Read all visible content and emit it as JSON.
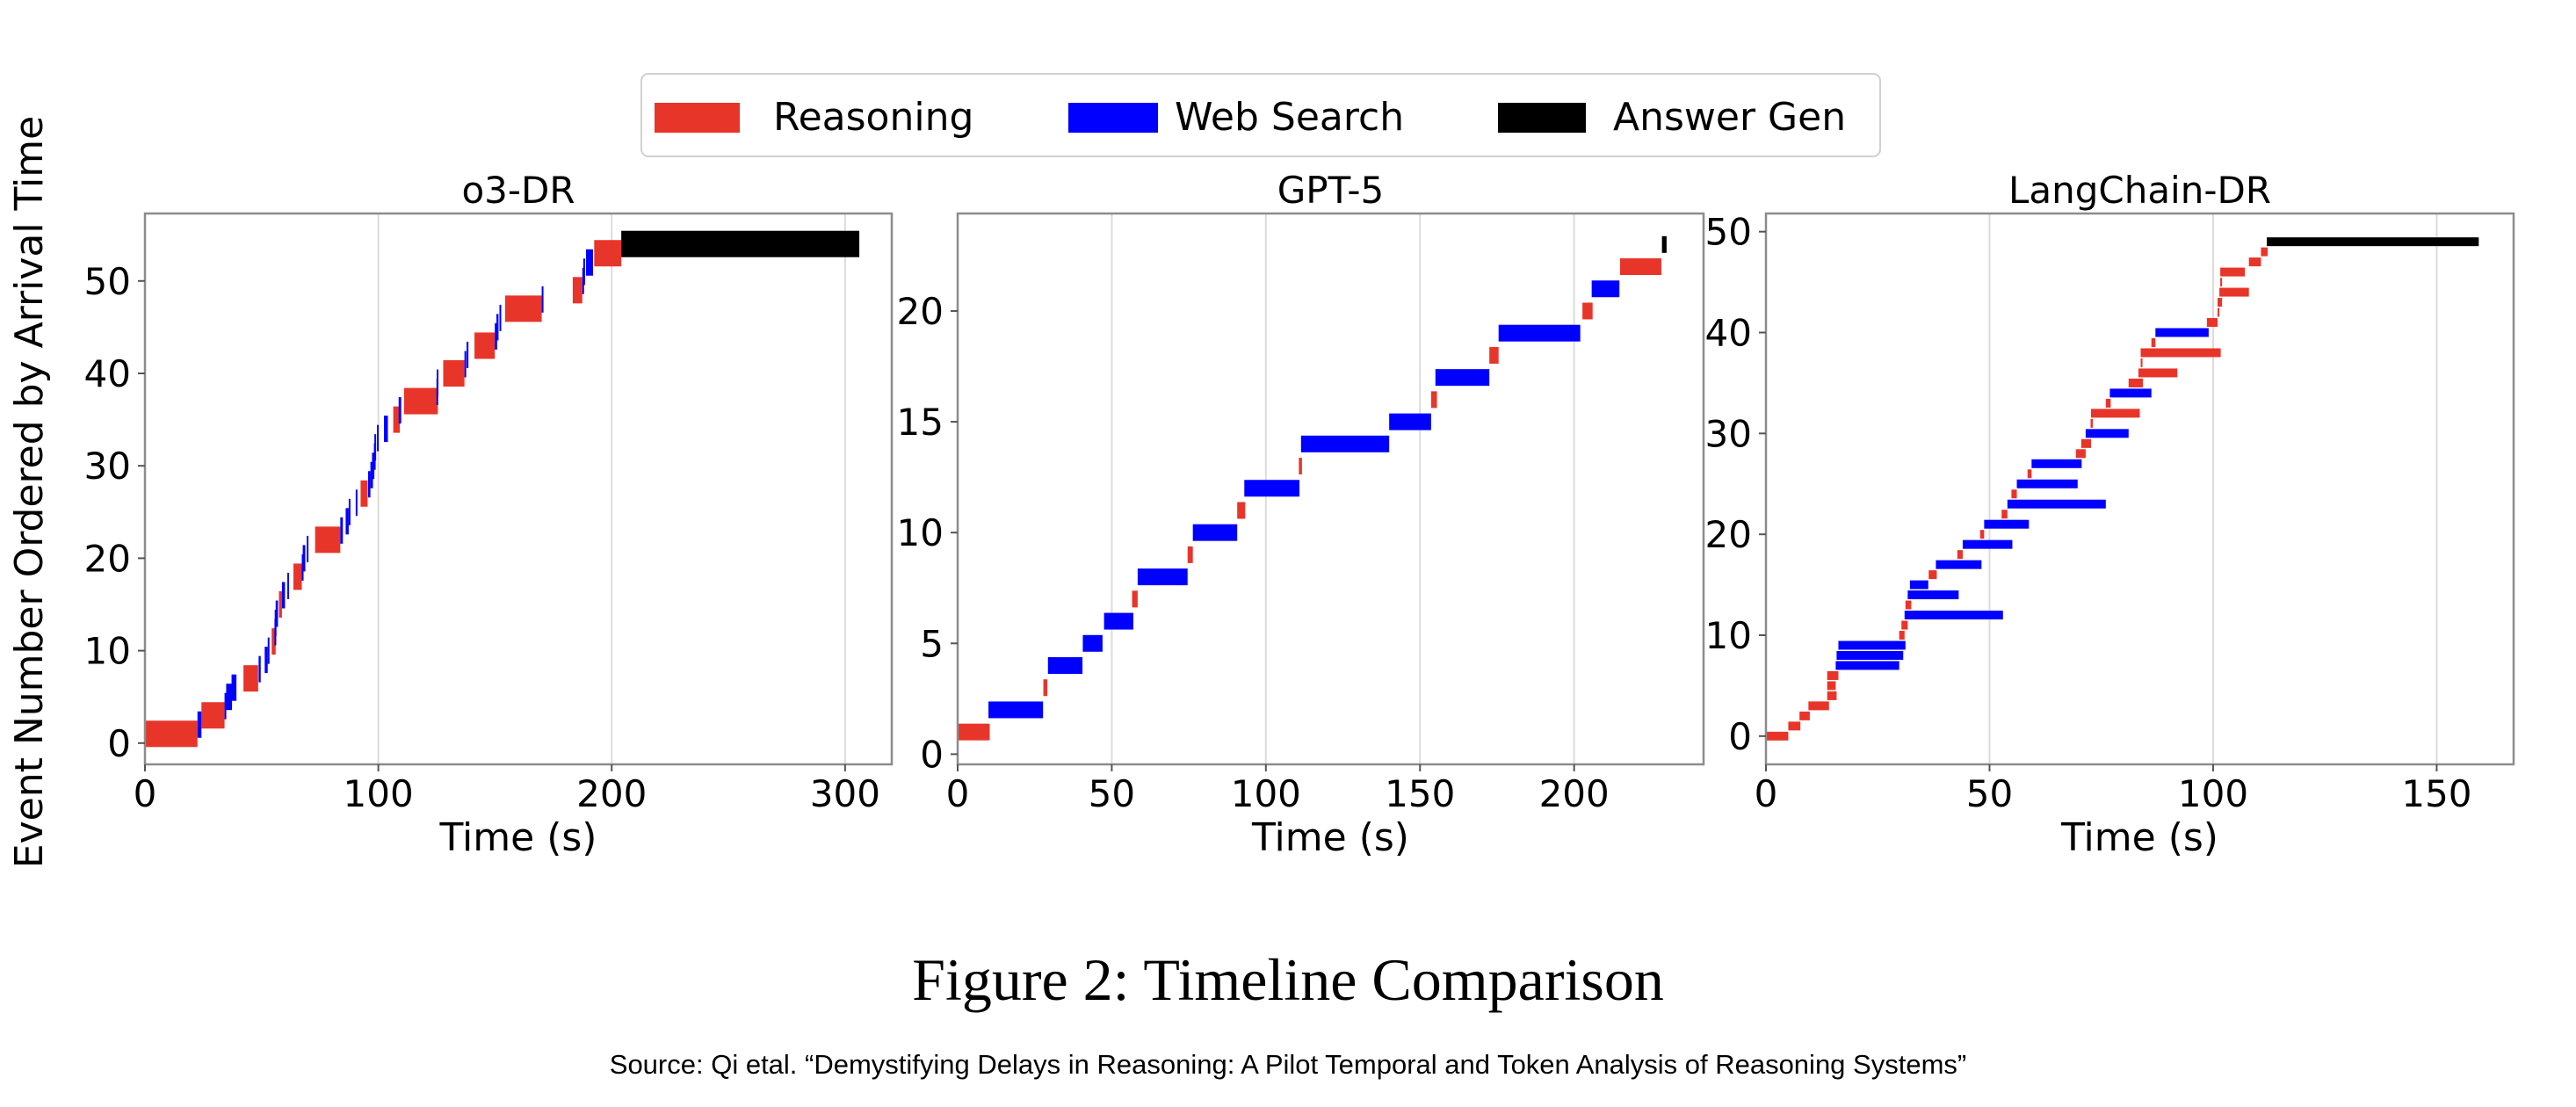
{
  "legend": {
    "items": [
      {
        "label": "Reasoning",
        "color": "#e8352a"
      },
      {
        "label": "Web Search",
        "color": "#0000ff"
      },
      {
        "label": "Answer Gen",
        "color": "#000000"
      }
    ],
    "placement": "top-center"
  },
  "shared_ylabel": "Event Number Ordered by Arrival Time",
  "caption": "Figure 2: Timeline Comparison",
  "source": "Source: Qi etal. “Demystifying Delays in Reasoning: A Pilot Temporal and Token Analysis of Reasoning Systems”",
  "chart_data": [
    {
      "type": "timeline",
      "title": "o3-DR",
      "xlabel": "Time (s)",
      "ylabel": "Event Number Ordered by Arrival Time",
      "xlim": [
        0,
        320
      ],
      "ylim": [
        -2.3,
        57.3
      ],
      "xticks": [
        0,
        100,
        200,
        300
      ],
      "yticks": [
        0,
        10,
        20,
        30,
        40,
        50
      ],
      "grid": "vertical",
      "series": [
        {
          "name": "Reasoning",
          "bars": [
            [
              1,
              0,
              22.5
            ],
            [
              3,
              24.2,
              34.1
            ],
            [
              7,
              42.2,
              48.5
            ],
            [
              11,
              54.3,
              56
            ],
            [
              15,
              57.4,
              58.7
            ],
            [
              18,
              63.6,
              67.2
            ],
            [
              22,
              72.9,
              83.7
            ],
            [
              27,
              92.4,
              95.4
            ],
            [
              35,
              106.4,
              109.2
            ],
            [
              37,
              111,
              125.5
            ],
            [
              40,
              127.8,
              136.9
            ],
            [
              43,
              141.2,
              149.9
            ],
            [
              47,
              154.3,
              170
            ],
            [
              49,
              183.3,
              187.4
            ],
            [
              53,
              192.5,
              204.1
            ]
          ]
        },
        {
          "name": "Web Search",
          "bars": [
            [
              2,
              22.5,
              24.2
            ],
            [
              4,
              34.1,
              34.5
            ],
            [
              5,
              34.8,
              37.3
            ],
            [
              6,
              37.1,
              39.2
            ],
            [
              8,
              48.7,
              49.6
            ],
            [
              9,
              51.3,
              52.6
            ],
            [
              10,
              52.6,
              53.2
            ],
            [
              12,
              55.5,
              56
            ],
            [
              13,
              55.6,
              56.2
            ],
            [
              14,
              56,
              57
            ],
            [
              16,
              58.7,
              60
            ],
            [
              17,
              61,
              61.7
            ],
            [
              19,
              67.2,
              67.8
            ],
            [
              20,
              67.6,
              68.7
            ],
            [
              21,
              69.3,
              69.7
            ],
            [
              23,
              83.7,
              84.8
            ],
            [
              24,
              86,
              87.3
            ],
            [
              25,
              87.3,
              88
            ],
            [
              26,
              90.3,
              90.7
            ],
            [
              28,
              95.6,
              96.6
            ],
            [
              29,
              96.6,
              97.7
            ],
            [
              30,
              97.3,
              98.3
            ],
            [
              31,
              98.1,
              98.6
            ],
            [
              32,
              98.3,
              99
            ],
            [
              33,
              99.4,
              100
            ],
            [
              34,
              102.4,
              104.1
            ],
            [
              36,
              108.7,
              109.8
            ],
            [
              38,
              124.9,
              125.5
            ],
            [
              39,
              125,
              125.5
            ],
            [
              41,
              136.9,
              137.3
            ],
            [
              42,
              137.8,
              138.6
            ],
            [
              44,
              149.9,
              150.9
            ],
            [
              45,
              150.6,
              151.5
            ],
            [
              46,
              151.9,
              152.6
            ],
            [
              48,
              170,
              170.6
            ],
            [
              50,
              187.4,
              188
            ],
            [
              51,
              187.8,
              188.6
            ],
            [
              52,
              189,
              192
            ]
          ]
        },
        {
          "name": "Answer Gen",
          "bars": [
            [
              54,
              204.1,
              306.1
            ]
          ]
        }
      ]
    },
    {
      "type": "timeline",
      "title": "GPT-5",
      "xlabel": "Time (s)",
      "xlim": [
        0,
        242
      ],
      "ylim": [
        -0.46,
        24.4
      ],
      "xticks": [
        0,
        50,
        100,
        150,
        200
      ],
      "yticks": [
        0,
        5,
        10,
        15,
        20
      ],
      "grid": "vertical",
      "series": [
        {
          "name": "Reasoning",
          "bars": [
            [
              1,
              0,
              10.4
            ],
            [
              3,
              27.8,
              29.1
            ],
            [
              7,
              56.6,
              58.4
            ],
            [
              9,
              74.6,
              76.3
            ],
            [
              11,
              90.7,
              93.3
            ],
            [
              13,
              110.7,
              111.7
            ],
            [
              16,
              153.6,
              155.5
            ],
            [
              18,
              172.5,
              175.5
            ],
            [
              20,
              202.7,
              206
            ],
            [
              22,
              214.9,
              228.3
            ]
          ]
        },
        {
          "name": "Web Search",
          "bars": [
            [
              2,
              10,
              27.7
            ],
            [
              4,
              29.3,
              40.5
            ],
            [
              5,
              40.6,
              47
            ],
            [
              6,
              47.5,
              57
            ],
            [
              8,
              58.4,
              74.6
            ],
            [
              10,
              76.3,
              90.7
            ],
            [
              12,
              93,
              110.9
            ],
            [
              14,
              111.4,
              140
            ],
            [
              15,
              140,
              153.6
            ],
            [
              17,
              155,
              172.5
            ],
            [
              19,
              175.5,
              202
            ],
            [
              21,
              205.7,
              214.7
            ]
          ]
        },
        {
          "name": "Answer Gen",
          "bars": [
            [
              23,
              228.5,
              230
            ]
          ]
        }
      ]
    },
    {
      "type": "timeline",
      "title": "LangChain-DR",
      "xlabel": "Time (s)",
      "xlim": [
        0,
        167.2
      ],
      "ylim": [
        -2.8,
        51.8
      ],
      "xticks": [
        0,
        50,
        100,
        150
      ],
      "yticks": [
        0,
        10,
        20,
        30,
        40,
        50
      ],
      "grid": "vertical",
      "series": [
        {
          "name": "Reasoning",
          "bars": [
            [
              0,
              0,
              5
            ],
            [
              1,
              5,
              7.7
            ],
            [
              2,
              7.5,
              9.8
            ],
            [
              3,
              9.5,
              14.1
            ],
            [
              4,
              13.7,
              15.8
            ],
            [
              5,
              13.7,
              15.6
            ],
            [
              6,
              13.7,
              16.2
            ],
            [
              10,
              29.8,
              31
            ],
            [
              11,
              30.3,
              31.7
            ],
            [
              13,
              31.2,
              32.5
            ],
            [
              16,
              36.4,
              38.2
            ],
            [
              18,
              42.8,
              44
            ],
            [
              20,
              47.9,
              48.8
            ],
            [
              22,
              52.7,
              54
            ],
            [
              24,
              54.9,
              56.1
            ],
            [
              26,
              58.5,
              59.4
            ],
            [
              28,
              69.3,
              71.5
            ],
            [
              29,
              70.5,
              72.7
            ],
            [
              31,
              72.6,
              73.1
            ],
            [
              32,
              72.7,
              83.6
            ],
            [
              33,
              76,
              77.1
            ],
            [
              35,
              81.1,
              84.3
            ],
            [
              36,
              83.3,
              92
            ],
            [
              37,
              83.8,
              84.2
            ],
            [
              38,
              83.8,
              101.7
            ],
            [
              39,
              86.2,
              87.1
            ],
            [
              41,
              98.6,
              101
            ],
            [
              42,
              101,
              101.4
            ],
            [
              43,
              101,
              102
            ],
            [
              44,
              101.4,
              108
            ],
            [
              45,
              101.6,
              102
            ],
            [
              46,
              101.6,
              107.1
            ],
            [
              47,
              108,
              110.7
            ],
            [
              48,
              110.7,
              112.2
            ]
          ]
        },
        {
          "name": "Web Search",
          "bars": [
            [
              7,
              15.6,
              29.8
            ],
            [
              8,
              15.8,
              30.7
            ],
            [
              9,
              16.2,
              31.2
            ],
            [
              12,
              31,
              53
            ],
            [
              14,
              31.7,
              43.1
            ],
            [
              15,
              32.2,
              36.3
            ],
            [
              17,
              38,
              48.2
            ],
            [
              19,
              44,
              55.1
            ],
            [
              21,
              48.8,
              58.8
            ],
            [
              23,
              54,
              76
            ],
            [
              25,
              56.1,
              69.7
            ],
            [
              27,
              59.4,
              70.6
            ],
            [
              30,
              71.5,
              81.1
            ],
            [
              34,
              76.9,
              86.2
            ],
            [
              40,
              87.1,
              99
            ]
          ]
        },
        {
          "name": "Answer Gen",
          "bars": [
            [
              49,
              112,
              159.4
            ]
          ]
        }
      ]
    }
  ]
}
